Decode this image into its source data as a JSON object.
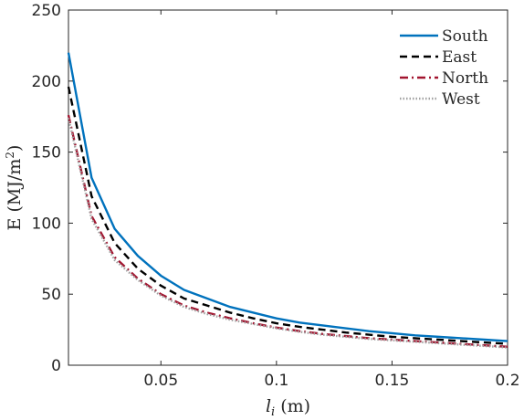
{
  "chart_data": {
    "type": "line",
    "xlabel_main": "l",
    "xlabel_sub": "i",
    "xlabel_unit": "(m)",
    "ylabel_main": "E (MJ/m",
    "ylabel_sup": "2",
    "ylabel_close": ")",
    "xlim": [
      0.01,
      0.2
    ],
    "ylim": [
      0,
      250
    ],
    "xticks": [
      0.05,
      0.1,
      0.15,
      0.2
    ],
    "xtick_labels": [
      "0.05",
      "0.1",
      "0.15",
      "0.2"
    ],
    "yticks": [
      0,
      50,
      100,
      150,
      200,
      250
    ],
    "ytick_labels": [
      "0",
      "50",
      "100",
      "150",
      "200",
      "250"
    ],
    "grid": false,
    "legend_position": "top-right",
    "x": [
      0.01,
      0.02,
      0.03,
      0.04,
      0.05,
      0.06,
      0.07,
      0.08,
      0.09,
      0.1,
      0.11,
      0.12,
      0.13,
      0.14,
      0.15,
      0.16,
      0.17,
      0.18,
      0.19,
      0.2
    ],
    "series": [
      {
        "name": "South",
        "color": "#0072BD",
        "style": "solid",
        "values": [
          220,
          132,
          96,
          77,
          63,
          53,
          47,
          41,
          37,
          33,
          30,
          28,
          26,
          24,
          22.5,
          21,
          20,
          19,
          18,
          17
        ]
      },
      {
        "name": "East",
        "color": "#000000",
        "style": "dashed",
        "values": [
          196,
          119,
          86,
          68,
          56,
          47,
          42,
          37,
          33,
          29.5,
          27,
          25,
          23,
          21.5,
          20,
          19,
          18,
          17,
          16,
          15
        ]
      },
      {
        "name": "North",
        "color": "#A2142F",
        "style": "dashdot",
        "values": [
          176,
          105,
          76,
          61,
          50,
          42,
          37,
          33,
          29.5,
          26.5,
          24,
          22,
          20.5,
          19,
          18,
          17,
          16,
          15,
          14,
          13
        ]
      },
      {
        "name": "West",
        "color": "#A0A0A0",
        "style": "dotted",
        "values": [
          174,
          103,
          74,
          60,
          49,
          41,
          36,
          32,
          29,
          26,
          23.5,
          21.5,
          20,
          18.5,
          17.5,
          16.5,
          15.5,
          14.5,
          13.5,
          12.5
        ]
      }
    ]
  }
}
